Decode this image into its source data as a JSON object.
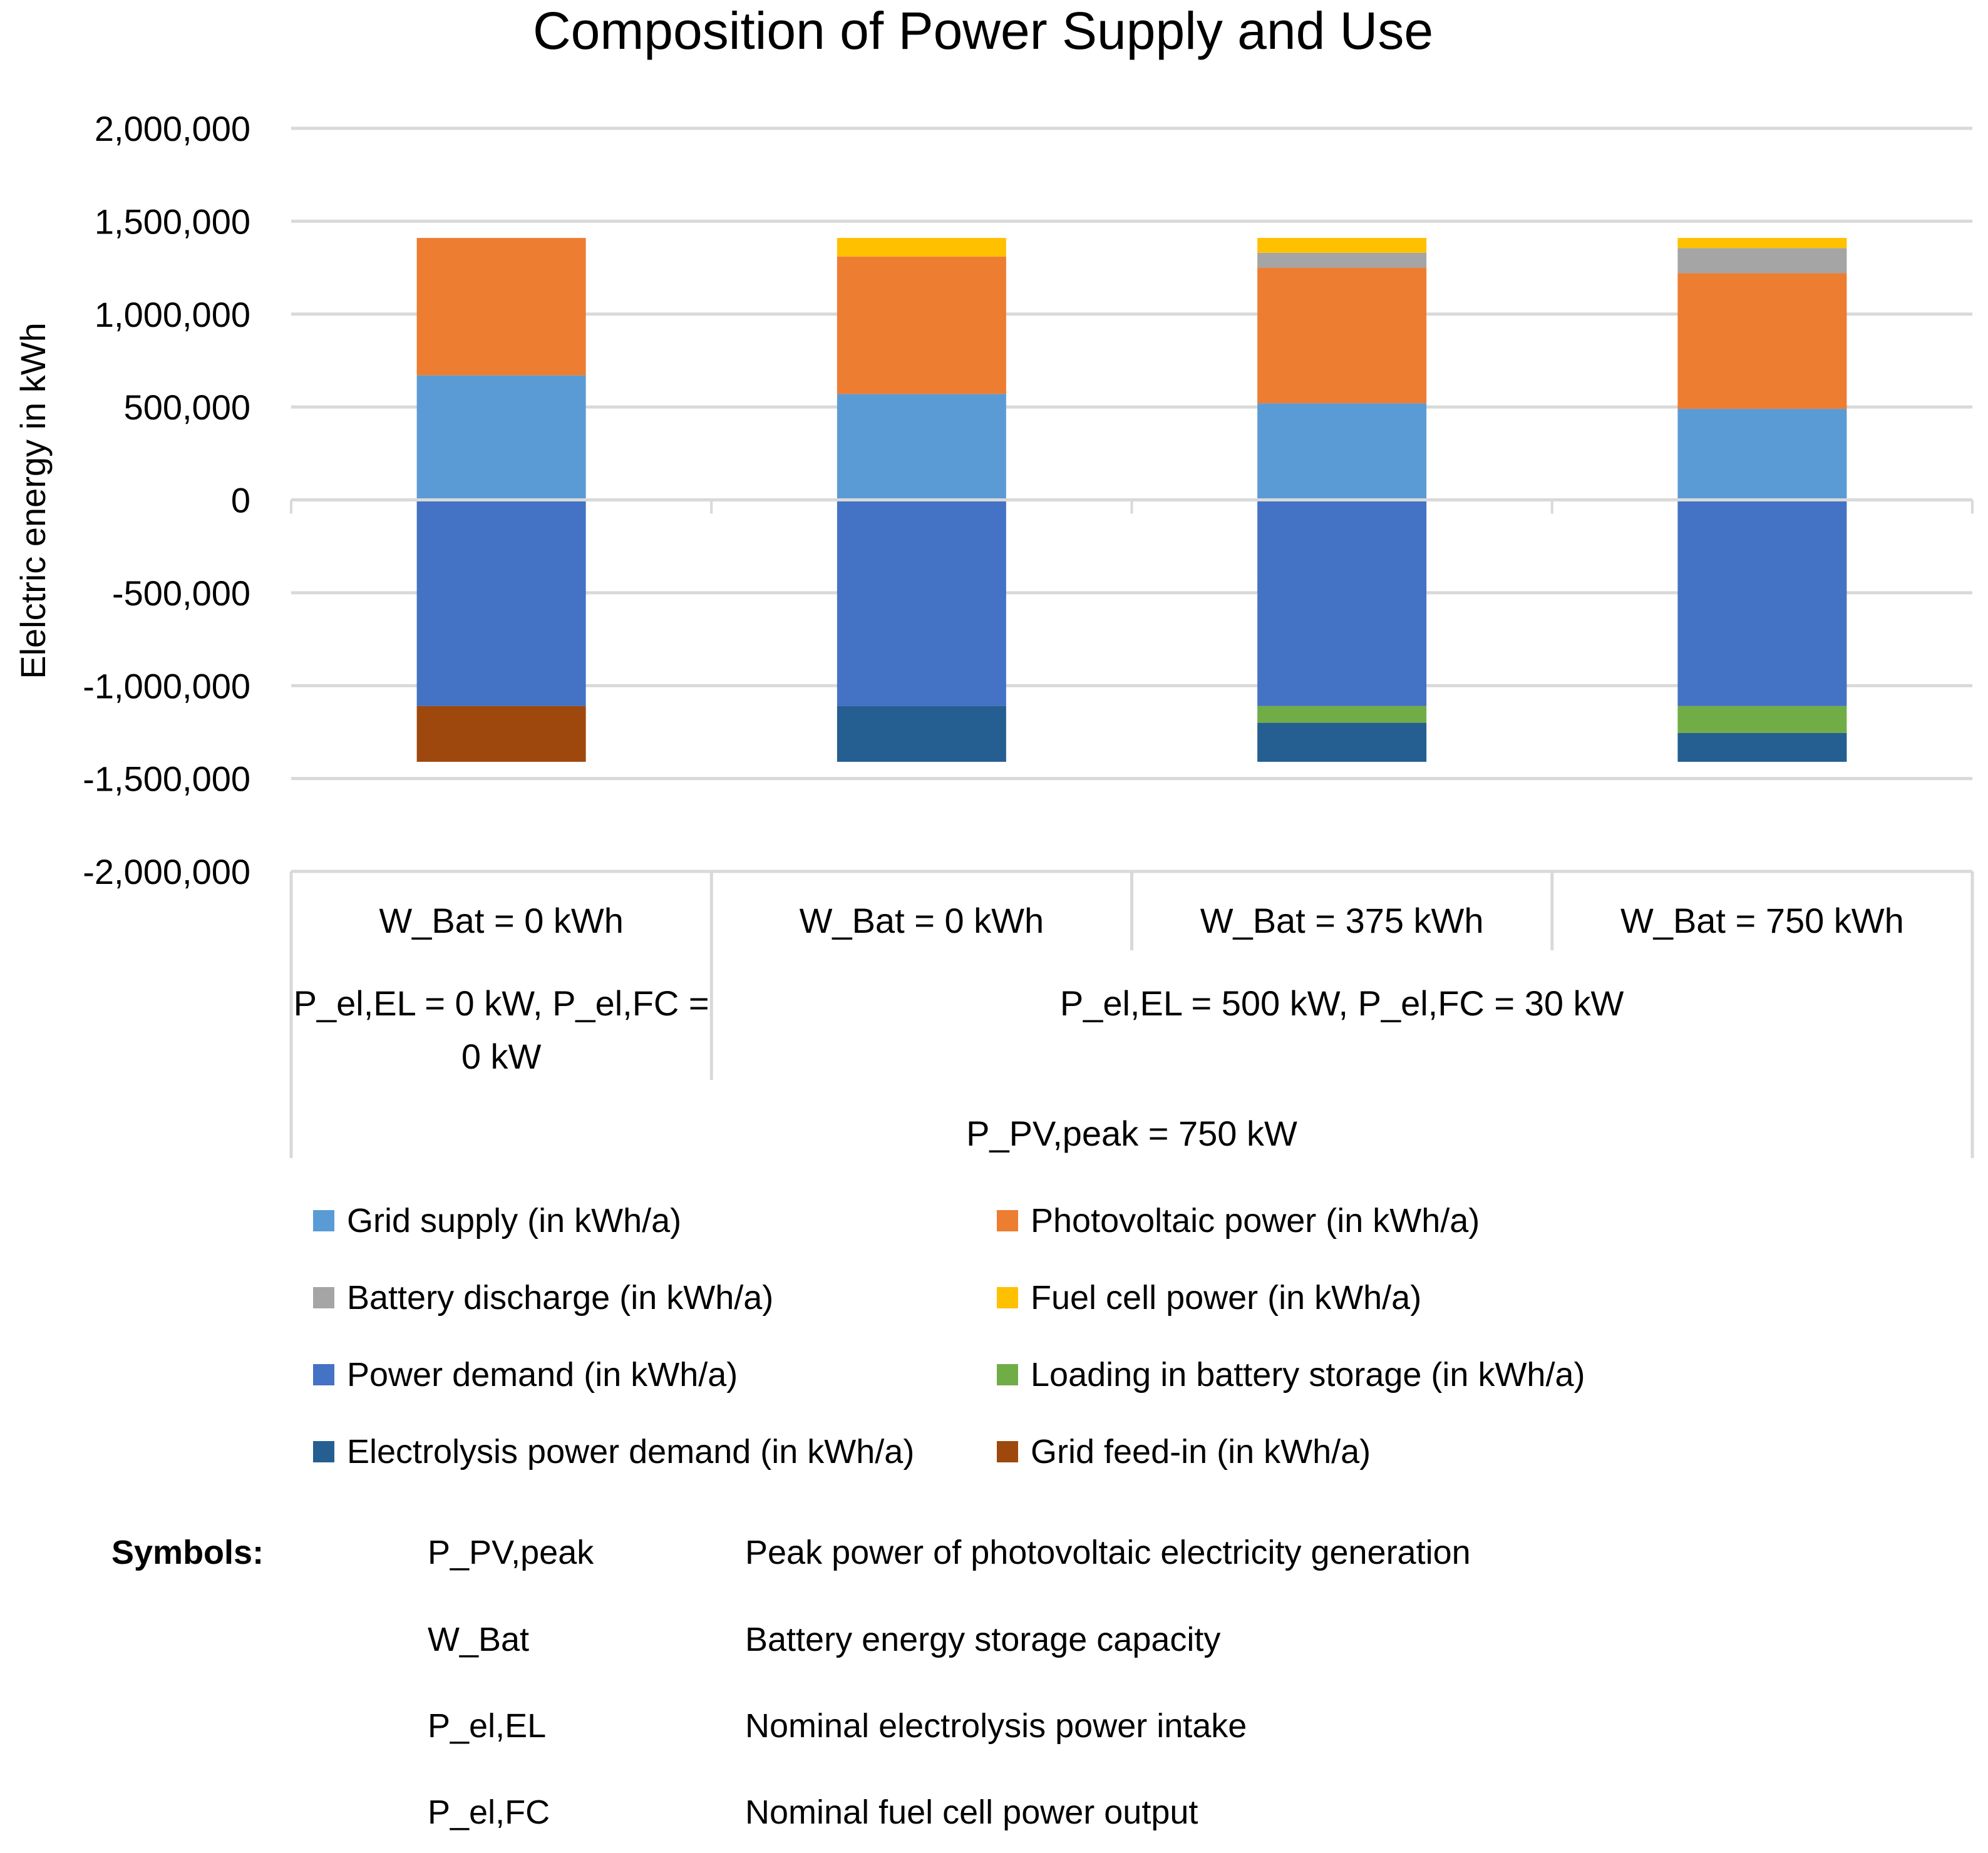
{
  "chart_data": {
    "type": "bar",
    "stacked": true,
    "title": "Composition of Power Supply and Use",
    "ylabel": "Elelctric energy in kWh",
    "xlabel": "",
    "ylim": [
      -2000000,
      2000000
    ],
    "yticks": [
      2000000,
      1500000,
      1000000,
      500000,
      0,
      -500000,
      -1000000,
      -1500000,
      -2000000
    ],
    "ytick_labels": [
      "2,000,000",
      "1,500,000",
      "1,000,000",
      "500,000",
      "0",
      "-500,000",
      "-1,000,000",
      "-1,500,000",
      "-2,000,000"
    ],
    "grid": true,
    "categories": [
      "W_Bat = 0 kWh",
      "W_Bat = 0 kWh",
      "W_Bat = 375 kWh",
      "W_Bat = 750 kWh"
    ],
    "category_groups": [
      {
        "label": "P_el,EL = 0 kW, P_el,FC = 0 kW",
        "line1": "P_el,EL = 0 kW, P_el,FC =",
        "line2": "0 kW",
        "span": [
          0,
          0
        ]
      },
      {
        "label": "P_el,EL = 500 kW, P_el,FC = 30 kW",
        "span": [
          1,
          3
        ]
      }
    ],
    "outer_group": {
      "label": "P_PV,peak = 750 kW",
      "span": [
        0,
        3
      ]
    },
    "series": [
      {
        "name": "Grid supply (in kWh/a)",
        "color": "#5B9BD5",
        "values": [
          670000,
          570000,
          520000,
          490000
        ]
      },
      {
        "name": "Photovoltaic power (in kWh/a)",
        "color": "#ED7D31",
        "values": [
          740000,
          740000,
          730000,
          730000
        ]
      },
      {
        "name": "Battery discharge (in kWh/a)",
        "color": "#A5A5A5",
        "values": [
          0,
          0,
          80000,
          135000
        ]
      },
      {
        "name": "Fuel cell power (in kWh/a)",
        "color": "#FFC000",
        "values": [
          0,
          100000,
          80000,
          55000
        ]
      },
      {
        "name": "Power demand (in kWh/a)",
        "color": "#4472C4",
        "values": [
          -1110000,
          -1110000,
          -1110000,
          -1110000
        ]
      },
      {
        "name": "Loading in battery storage (in kWh/a)",
        "color": "#70AD47",
        "values": [
          0,
          0,
          -90000,
          -145000
        ]
      },
      {
        "name": "Electrolysis power demand (in kWh/a)",
        "color": "#255E91",
        "values": [
          0,
          -300000,
          -210000,
          -155000
        ]
      },
      {
        "name": "Grid feed-in (in kWh/a)",
        "color": "#9E480E",
        "values": [
          -300000,
          0,
          0,
          0
        ]
      }
    ],
    "legend_position": "bottom"
  },
  "symbols": {
    "heading": "Symbols:",
    "items": [
      {
        "symbol": "P_PV,peak",
        "description": "Peak power of photovoltaic electricity generation"
      },
      {
        "symbol": "W_Bat",
        "description": "Battery energy storage capacity"
      },
      {
        "symbol": "P_el,EL",
        "description": "Nominal electrolysis power intake"
      },
      {
        "symbol": "P_el,FC",
        "description": "Nominal fuel cell power output"
      }
    ]
  }
}
